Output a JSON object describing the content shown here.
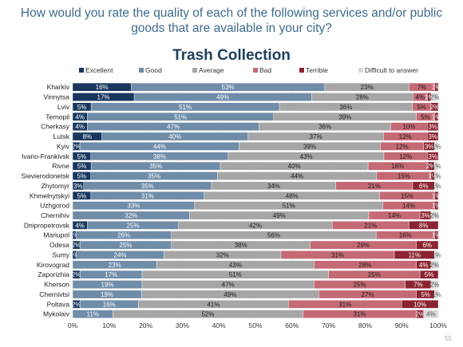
{
  "slide": {
    "question": "How would you rate the quality of each of the following services and/or public goods that are available in your city?",
    "page_number": "55"
  },
  "chart_data": {
    "type": "bar",
    "orientation": "horizontal",
    "stacked": true,
    "percent": true,
    "title": "Trash Collection",
    "legend_position": "top",
    "xlim": [
      0,
      100
    ],
    "x_ticks": [
      "0%",
      "10%",
      "20%",
      "30%",
      "40%",
      "50%",
      "60%",
      "70%",
      "80%",
      "90%",
      "100%"
    ],
    "categories": [
      "Kharkiv",
      "Vinnytsa",
      "Lviv",
      "Ternopil",
      "Cherkasy",
      "Lutsk",
      "Kyiv",
      "Ivano-Frankivsk",
      "Rivne",
      "Sievierodonetsk",
      "Zhytomyr",
      "Khmelnytskyi",
      "Uzhgorod",
      "Chernihiv",
      "Dnipropetrovsk",
      "Mariupol",
      "Odesa",
      "Sumy",
      "Kirovograd",
      "Zaporizhia",
      "Kherson",
      "Chernivtsi",
      "Poltava",
      "Mykolaiv"
    ],
    "series": [
      {
        "name": "Excellent",
        "color": "#17375e",
        "values": [
          16,
          17,
          5,
          4,
          4,
          8,
          2,
          5,
          5,
          5,
          3,
          5,
          0,
          0,
          4,
          1,
          2,
          1,
          0,
          2,
          0,
          0,
          2,
          0
        ],
        "labels": [
          "16%",
          "17%",
          "5%",
          "4%",
          "4%",
          "8%",
          "2%",
          "5%",
          "5%",
          "5%",
          "3%",
          "5%",
          "",
          "",
          "4%",
          "1%",
          "2%",
          "1%",
          "",
          "2%",
          "",
          "",
          "2%",
          ""
        ]
      },
      {
        "name": "Good",
        "color": "#6f8ca8",
        "values": [
          53,
          49,
          51,
          51,
          47,
          40,
          44,
          38,
          35,
          35,
          35,
          31,
          33,
          32,
          25,
          26,
          25,
          24,
          23,
          17,
          19,
          19,
          16,
          11
        ],
        "labels": [
          "53%",
          "49%",
          "51%",
          "51%",
          "47%",
          "40%",
          "44%",
          "38%",
          "35%",
          "35%",
          "35%",
          "31%",
          "33%",
          "32%",
          "25%",
          "26%",
          "25%",
          "24%",
          "23%",
          "17%",
          "19%",
          "19%",
          "16%",
          "11%"
        ]
      },
      {
        "name": "Average",
        "color": "#a6a6a6",
        "values": [
          23,
          28,
          36,
          39,
          36,
          37,
          39,
          43,
          40,
          44,
          34,
          48,
          51,
          49,
          42,
          56,
          38,
          32,
          43,
          51,
          47,
          49,
          41,
          52
        ],
        "labels": [
          "23%",
          "28%",
          "36%",
          "39%",
          "36%",
          "37%",
          "39%",
          "43%",
          "40%",
          "44%",
          "34%",
          "48%",
          "51%",
          "49%",
          "42%",
          "56%",
          "38%",
          "32%",
          "43%",
          "51%",
          "47%",
          "49%",
          "41%",
          "52%"
        ]
      },
      {
        "name": "Bad",
        "color": "#c46a75",
        "values": [
          7,
          4,
          5,
          5,
          10,
          12,
          12,
          12,
          16,
          15,
          21,
          15,
          14,
          14,
          21,
          16,
          29,
          31,
          28,
          25,
          25,
          27,
          31,
          31
        ],
        "labels": [
          "7%",
          "4%",
          "5%",
          "5%",
          "10%",
          "12%",
          "12%",
          "12%",
          "16%",
          "15%",
          "21%",
          "15%",
          "14%",
          "14%",
          "21%",
          "16%",
          "29%",
          "31%",
          "28%",
          "25%",
          "25%",
          "27%",
          "31%",
          "31%"
        ]
      },
      {
        "name": "Terrible",
        "color": "#8b2330",
        "values": [
          1,
          1,
          2,
          1,
          3,
          3,
          3,
          3,
          2,
          1,
          6,
          1,
          1,
          3,
          8,
          1,
          6,
          11,
          4,
          5,
          7,
          5,
          10,
          2
        ],
        "labels": [
          "1%",
          "1%",
          "2%",
          "1%",
          "3%",
          "3%",
          "3%",
          "3%",
          "2%",
          "1%",
          "6%",
          "1%",
          "1%",
          "3%",
          "8%",
          "1%",
          "6%",
          "11%",
          "4%",
          "5%",
          "7%",
          "5%",
          "10%",
          "2%"
        ]
      },
      {
        "name": "Difficult to answer",
        "color": "#d9d9d9",
        "values": [
          0,
          2,
          0,
          0,
          0,
          0,
          1,
          0,
          1,
          1,
          1,
          0,
          0,
          2,
          0,
          0,
          0,
          1,
          2,
          0,
          2,
          1,
          0,
          4
        ],
        "labels": [
          "",
          "2%",
          "",
          "",
          "",
          "",
          "1%",
          "",
          "1%",
          "1%",
          "1%",
          "",
          "",
          "2%",
          "",
          "",
          "",
          "1%",
          "2%",
          "",
          "2%",
          "1%",
          "",
          "4%"
        ]
      }
    ]
  }
}
